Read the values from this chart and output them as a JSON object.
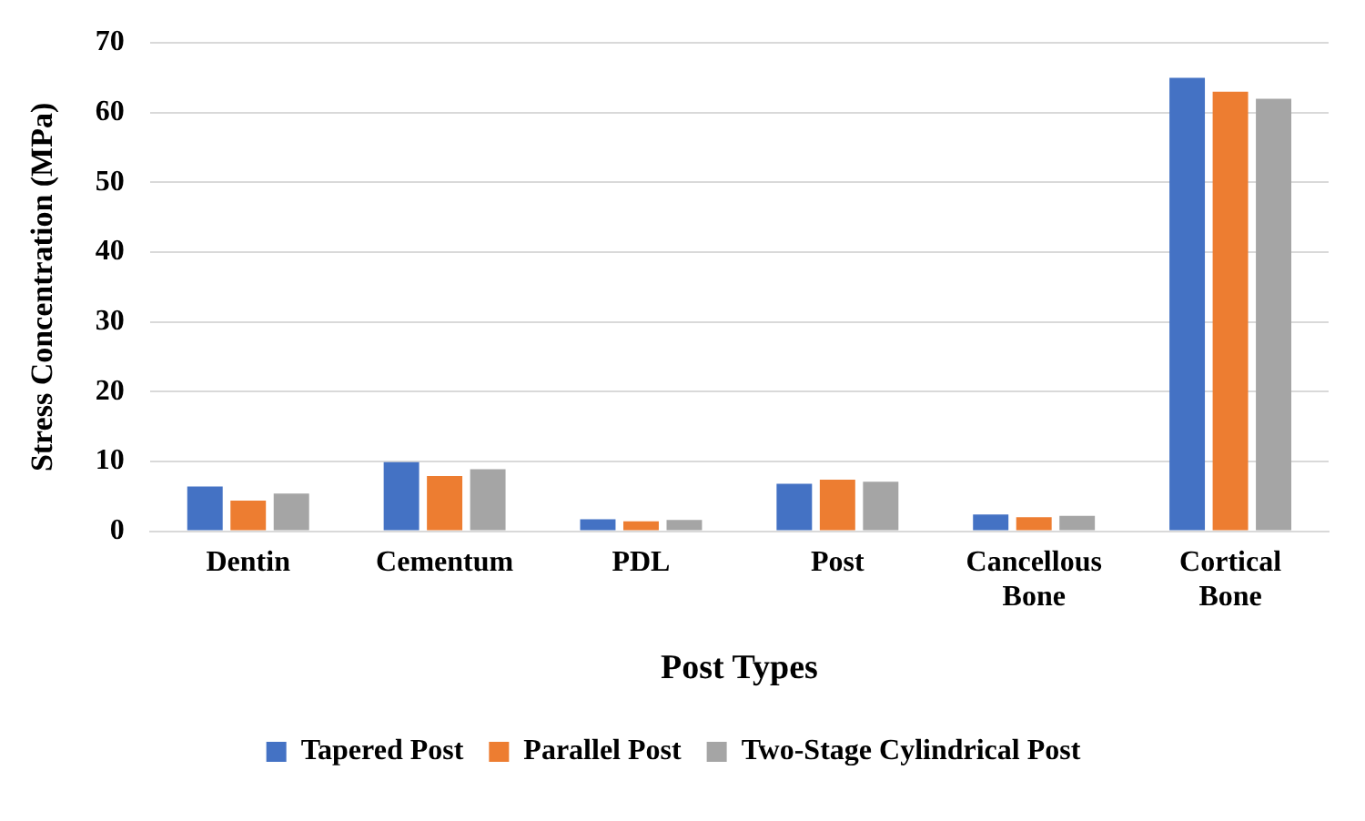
{
  "chart_data": {
    "type": "bar",
    "xlabel": "Post Types",
    "ylabel": "Stress Concentration (MPa)",
    "categories": [
      "Dentin",
      "Cementum",
      "PDL",
      "Post",
      "Cancellous Bone",
      "Cortical Bone"
    ],
    "series": [
      {
        "name": "Tapered Post",
        "color": "#4472c4",
        "values": [
          6.4,
          9.9,
          1.7,
          6.8,
          2.4,
          65
        ]
      },
      {
        "name": "Parallel Post",
        "color": "#ed7d31",
        "values": [
          4.4,
          7.9,
          1.4,
          7.4,
          2.0,
          63
        ]
      },
      {
        "name": "Two-Stage Cylindrical Post",
        "color": "#a5a5a5",
        "values": [
          5.4,
          8.9,
          1.6,
          7.1,
          2.2,
          62
        ]
      }
    ],
    "ylim": [
      0,
      70
    ],
    "yticks": [
      0,
      10,
      20,
      30,
      40,
      50,
      60,
      70
    ],
    "grid": "y",
    "legend": "bottom"
  }
}
